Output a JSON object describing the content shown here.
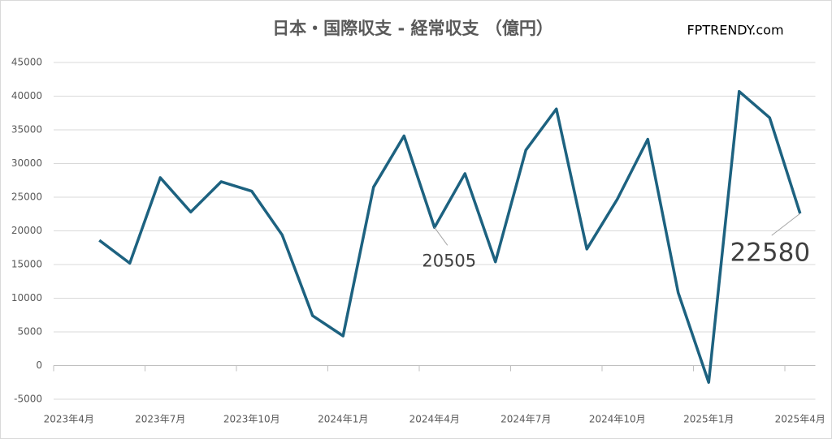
{
  "chart_data": {
    "type": "line",
    "title": "日本・国際収支 - 経常収支 （億円）",
    "source": "FPTRENDY.com",
    "categories": [
      "2023年4月",
      null,
      null,
      "2023年7月",
      null,
      null,
      "2023年10月",
      null,
      null,
      "2024年1月",
      null,
      null,
      "2024年4月",
      null,
      null,
      "2024年7月",
      null,
      null,
      "2024年10月",
      null,
      null,
      "2025年1月",
      null,
      null,
      "2025年4月"
    ],
    "series": [
      {
        "name": "経常収支",
        "color": "#1d6280",
        "values": [
          null,
          18600,
          15200,
          27900,
          22800,
          27300,
          25900,
          19400,
          7400,
          4400,
          26500,
          34100,
          20505,
          28500,
          15400,
          32000,
          38100,
          17300,
          24700,
          33600,
          10800,
          -2500,
          40700,
          36800,
          22580
        ],
        "value_labels": [
          null,
          null,
          null,
          null,
          null,
          null,
          null,
          null,
          null,
          null,
          null,
          null,
          "20505",
          null,
          null,
          null,
          null,
          null,
          null,
          null,
          null,
          null,
          null,
          null,
          "22580"
        ]
      }
    ],
    "ylim": [
      -5000,
      45000
    ],
    "yticks": [
      -5000,
      0,
      5000,
      10000,
      15000,
      20000,
      25000,
      30000,
      35000,
      40000,
      45000
    ],
    "grid": true
  }
}
